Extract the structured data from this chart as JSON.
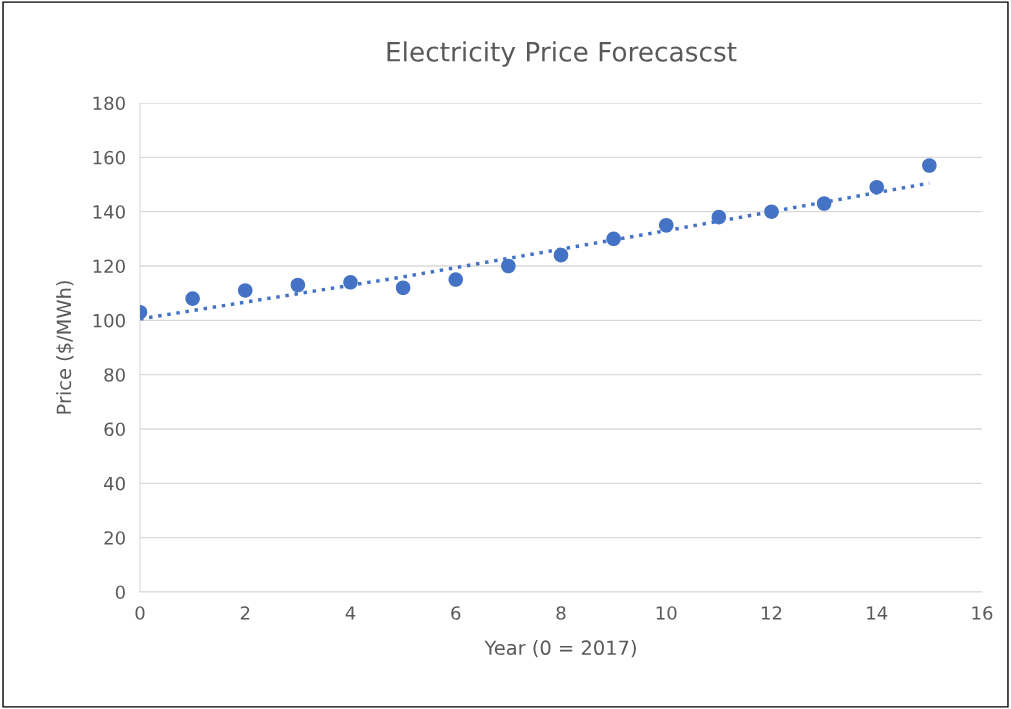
{
  "chart_data": {
    "type": "scatter",
    "title": "Electricity Price Forecascst",
    "xlabel": "Year (0 = 2017)",
    "ylabel": "Price ($/MWh)",
    "series": [
      {
        "color": "#4472c4",
        "marker": "circle",
        "x": [
          0,
          1,
          2,
          3,
          4,
          5,
          6,
          7,
          8,
          9,
          10,
          11,
          12,
          13,
          14,
          15
        ],
        "values": [
          103,
          108,
          111,
          113,
          114,
          112,
          115,
          120,
          124,
          130,
          135,
          138,
          140,
          143,
          149,
          157
        ]
      },
      {
        "type": "line",
        "color": "#4472c4",
        "marker": "none",
        "line_style": "dotted",
        "x": [
          0,
          5,
          10,
          15
        ],
        "values": [
          100.5,
          116,
          133,
          150.5
        ]
      }
    ],
    "xlim": [
      0,
      16
    ],
    "xticks": [
      0,
      2,
      4,
      6,
      8,
      10,
      12,
      14,
      16
    ],
    "ylim": [
      0,
      180
    ],
    "yticks": [
      0,
      20,
      40,
      60,
      80,
      100,
      120,
      140,
      160,
      180
    ],
    "grid": "y",
    "legend": false
  }
}
